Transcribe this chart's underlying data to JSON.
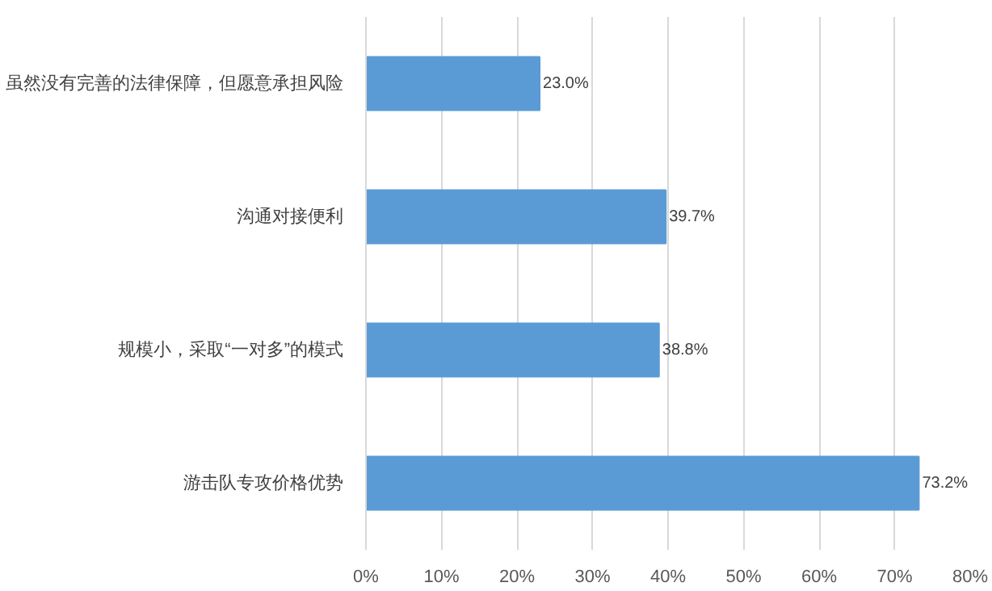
{
  "chart_data": {
    "type": "bar",
    "orientation": "horizontal",
    "categories": [
      "虽然没有完善的法律保障，但愿意承担风险",
      "沟通对接便利",
      "规模小，采取“一对多”的模式",
      "游击队专攻价格优势"
    ],
    "values": [
      23.0,
      39.7,
      38.8,
      73.2
    ],
    "value_labels": [
      "23.0%",
      "39.7%",
      "38.8%",
      "73.2%"
    ],
    "color": "#5b9bd5",
    "xlim": [
      0,
      80
    ],
    "xticks": [
      {
        "value": 0,
        "label": "0%"
      },
      {
        "value": 10,
        "label": "10%"
      },
      {
        "value": 20,
        "label": "20%"
      },
      {
        "value": 30,
        "label": "30%"
      },
      {
        "value": 40,
        "label": "40%"
      },
      {
        "value": 50,
        "label": "50%"
      },
      {
        "value": 60,
        "label": "60%"
      },
      {
        "value": 70,
        "label": "70%"
      },
      {
        "value": 80,
        "label": "80%"
      }
    ],
    "grid": "x"
  }
}
